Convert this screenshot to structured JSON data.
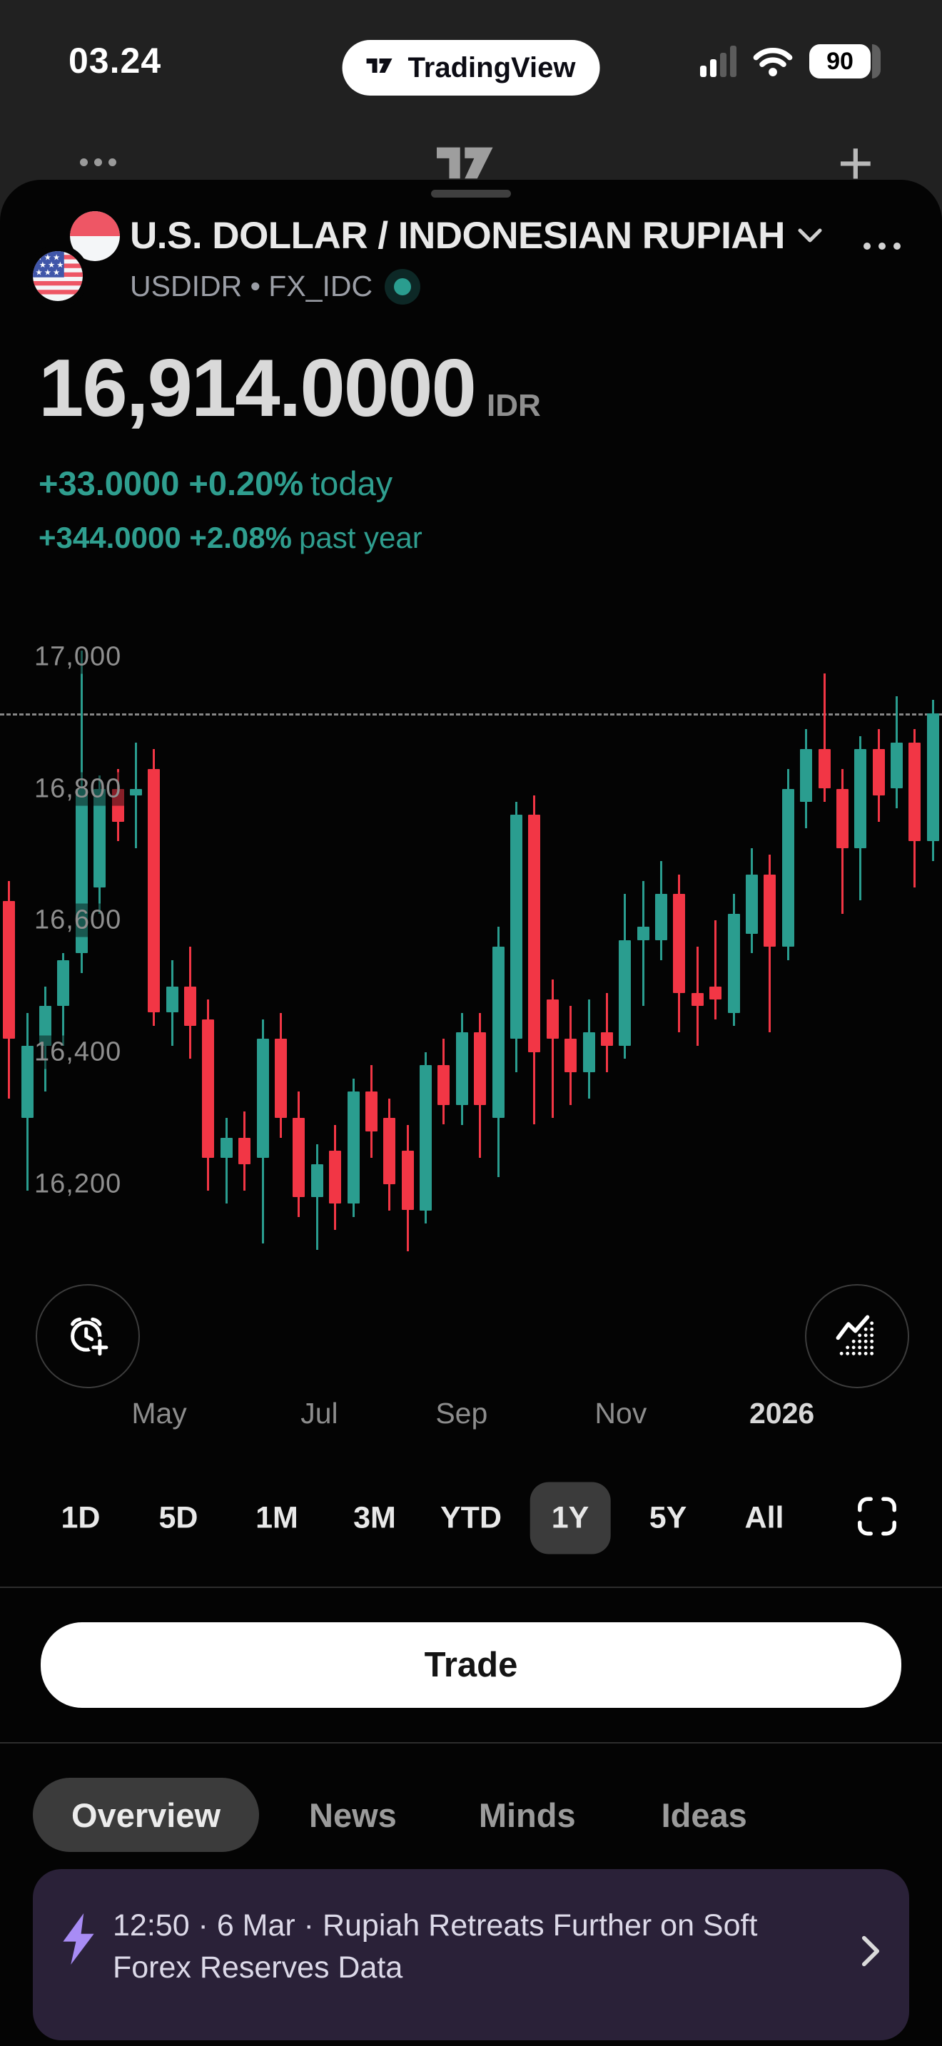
{
  "status_bar": {
    "time": "03.24",
    "carrier_pill": "TradingView",
    "battery_percent": "90"
  },
  "symbol": {
    "title": "U.S. DOLLAR / INDONESIAN RUPIAH",
    "subtitle": "USDIDR • FX_IDC",
    "market_status": "open"
  },
  "quote": {
    "price": "16,914.0000",
    "currency": "IDR",
    "change_today": "+33.0000 +0.20%",
    "change_today_period": "today",
    "change_year": "+344.0000 +2.08%",
    "change_year_period": "past year",
    "accent_color": "#2f9e8f"
  },
  "chart_data": {
    "type": "candlestick",
    "title": "USDIDR 1Y chart",
    "ylabel": "IDR",
    "last_price": 16914,
    "axis": {
      "top_value": 17055,
      "bottom_value": 16048
    },
    "grid": "off",
    "y_ticks": [
      {
        "value": 17000,
        "label": "17,000"
      },
      {
        "value": 16800,
        "label": "16,800"
      },
      {
        "value": 16600,
        "label": "16,600"
      },
      {
        "value": 16400,
        "label": "16,400"
      },
      {
        "value": 16200,
        "label": "16,200"
      }
    ],
    "x_ticks": [
      {
        "label": "May",
        "pos": 0.169,
        "strong": false
      },
      {
        "label": "Jul",
        "pos": 0.339,
        "strong": false
      },
      {
        "label": "Sep",
        "pos": 0.49,
        "strong": false
      },
      {
        "label": "Nov",
        "pos": 0.659,
        "strong": false
      },
      {
        "label": "2026",
        "pos": 0.83,
        "strong": true
      }
    ],
    "colors": {
      "up": "#2a9d8f",
      "down": "#f23645",
      "dashed": "#878787"
    },
    "candles": [
      [
        16630,
        16660,
        16330,
        16420
      ],
      [
        16300,
        16460,
        16190,
        16410
      ],
      [
        16410,
        16500,
        16340,
        16470
      ],
      [
        16470,
        16550,
        16410,
        16540
      ],
      [
        16550,
        17010,
        16520,
        16800
      ],
      [
        16650,
        16820,
        16610,
        16800
      ],
      [
        16800,
        16830,
        16720,
        16750
      ],
      [
        16790,
        16870,
        16710,
        16800
      ],
      [
        16830,
        16860,
        16440,
        16460
      ],
      [
        16460,
        16540,
        16410,
        16500
      ],
      [
        16500,
        16560,
        16390,
        16440
      ],
      [
        16450,
        16480,
        16190,
        16240
      ],
      [
        16240,
        16300,
        16170,
        16270
      ],
      [
        16270,
        16310,
        16190,
        16230
      ],
      [
        16240,
        16450,
        16110,
        16420
      ],
      [
        16420,
        16460,
        16270,
        16300
      ],
      [
        16300,
        16340,
        16150,
        16180
      ],
      [
        16180,
        16260,
        16100,
        16230
      ],
      [
        16250,
        16290,
        16130,
        16170
      ],
      [
        16170,
        16360,
        16150,
        16340
      ],
      [
        16340,
        16380,
        16240,
        16280
      ],
      [
        16300,
        16330,
        16160,
        16200
      ],
      [
        16250,
        16290,
        16098,
        16160
      ],
      [
        16160,
        16400,
        16140,
        16380
      ],
      [
        16380,
        16420,
        16290,
        16320
      ],
      [
        16320,
        16460,
        16290,
        16430
      ],
      [
        16430,
        16460,
        16240,
        16320
      ],
      [
        16300,
        16590,
        16210,
        16560
      ],
      [
        16420,
        16780,
        16370,
        16760
      ],
      [
        16760,
        16790,
        16290,
        16400
      ],
      [
        16480,
        16510,
        16300,
        16420
      ],
      [
        16420,
        16470,
        16320,
        16370
      ],
      [
        16370,
        16480,
        16330,
        16430
      ],
      [
        16430,
        16490,
        16370,
        16410
      ],
      [
        16410,
        16640,
        16390,
        16570
      ],
      [
        16570,
        16660,
        16470,
        16590
      ],
      [
        16570,
        16690,
        16540,
        16640
      ],
      [
        16640,
        16670,
        16430,
        16490
      ],
      [
        16490,
        16560,
        16410,
        16470
      ],
      [
        16500,
        16600,
        16450,
        16480
      ],
      [
        16460,
        16640,
        16440,
        16610
      ],
      [
        16580,
        16710,
        16550,
        16670
      ],
      [
        16670,
        16700,
        16430,
        16560
      ],
      [
        16560,
        16830,
        16540,
        16800
      ],
      [
        16780,
        16890,
        16740,
        16860
      ],
      [
        16860,
        16975,
        16780,
        16800
      ],
      [
        16800,
        16830,
        16610,
        16710
      ],
      [
        16710,
        16880,
        16630,
        16860
      ],
      [
        16860,
        16890,
        16750,
        16790
      ],
      [
        16800,
        16940,
        16770,
        16870
      ],
      [
        16870,
        16890,
        16650,
        16720
      ],
      [
        16720,
        16935,
        16690,
        16914
      ]
    ]
  },
  "ranges": {
    "options": [
      "1D",
      "5D",
      "1M",
      "3M",
      "YTD",
      "1Y",
      "5Y",
      "All"
    ],
    "selected": "1Y"
  },
  "trade": {
    "label": "Trade"
  },
  "tabs": {
    "items": [
      "Overview",
      "News",
      "Minds",
      "Ideas"
    ],
    "selected": "Overview"
  },
  "news": {
    "icon": "lightning-bolt",
    "headline": "12:50 · 6 Mar · Rupiah Retreats Further on Soft Forex Reserves Data"
  }
}
